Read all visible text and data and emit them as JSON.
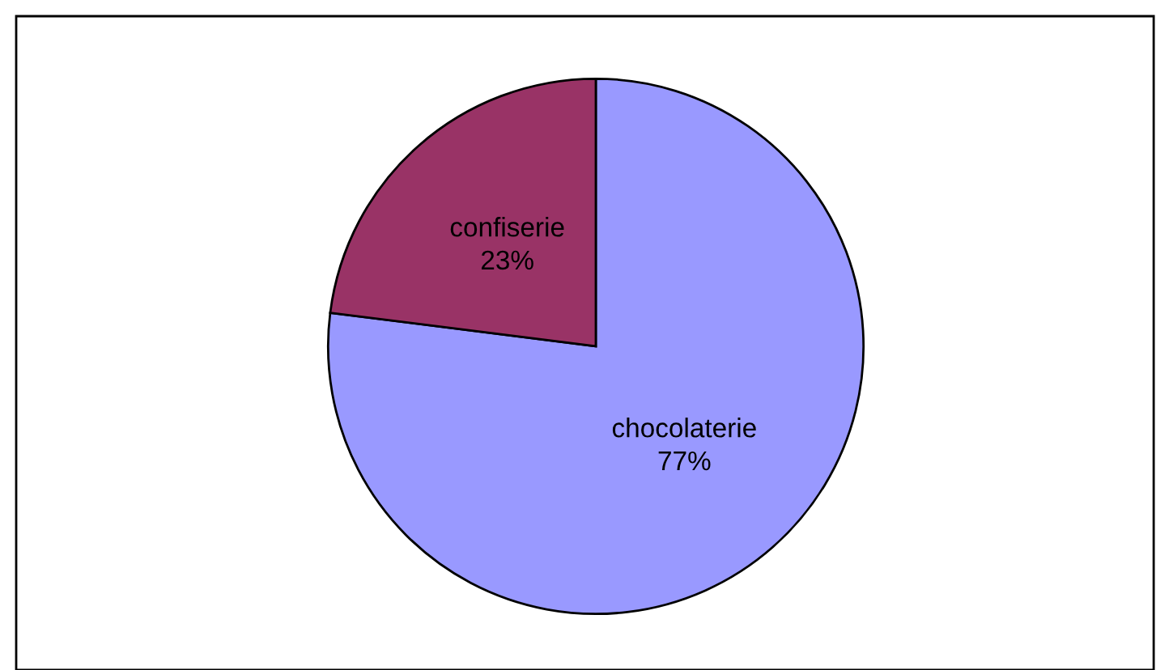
{
  "chart_data": {
    "type": "pie",
    "categories": [
      "chocolaterie",
      "confiserie"
    ],
    "values": [
      77,
      23
    ],
    "value_labels": [
      "77%",
      "23%"
    ],
    "colors": [
      "#9999ff",
      "#993366"
    ],
    "legend": false
  }
}
